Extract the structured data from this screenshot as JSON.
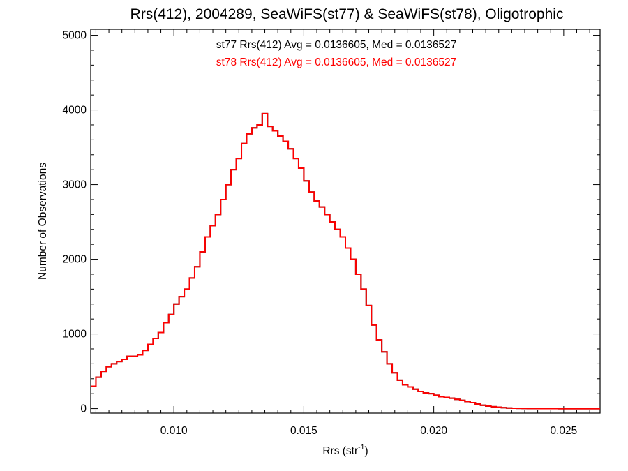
{
  "chart_data": {
    "type": "histogram-step",
    "title": "Rrs(412), 2004289, SeaWiFS(st77) & SeaWiFS(st78), Oligotrophic",
    "xlabel_main": "Rrs (str",
    "xlabel_sup": "-1",
    "xlabel_close": ")",
    "ylabel": "Number of Observations",
    "xlim": [
      0.0068,
      0.0264
    ],
    "ylim": [
      -60,
      5080
    ],
    "xticks": [
      0.01,
      0.015,
      0.02,
      0.025
    ],
    "xtick_labels": [
      "0.010",
      "0.015",
      "0.020",
      "0.025"
    ],
    "yticks": [
      0,
      1000,
      2000,
      3000,
      4000,
      5000
    ],
    "ytick_labels": [
      "0",
      "1000",
      "2000",
      "3000",
      "4000",
      "5000"
    ],
    "annotations": [
      {
        "text": "st77 Rrs(412) Avg = 0.0136605, Med = 0.0136527",
        "color": "#000000"
      },
      {
        "text": "st78 Rrs(412) Avg = 0.0136605, Med = 0.0136527",
        "color": "#ff0000"
      }
    ],
    "series": [
      {
        "name": "st77",
        "color": "#000000",
        "x": [
          0.0068,
          0.007,
          0.0072,
          0.0074,
          0.0076,
          0.0078,
          0.008,
          0.0082,
          0.0084,
          0.0086,
          0.0088,
          0.009,
          0.0092,
          0.0094,
          0.0096,
          0.0098,
          0.01,
          0.0102,
          0.0104,
          0.0106,
          0.0108,
          0.011,
          0.0112,
          0.0114,
          0.0116,
          0.0118,
          0.012,
          0.0122,
          0.0124,
          0.0126,
          0.0128,
          0.013,
          0.0132,
          0.0134,
          0.0136,
          0.0138,
          0.014,
          0.0142,
          0.0144,
          0.0146,
          0.0148,
          0.015,
          0.0152,
          0.0154,
          0.0156,
          0.0158,
          0.016,
          0.0162,
          0.0164,
          0.0166,
          0.0168,
          0.017,
          0.0172,
          0.0174,
          0.0176,
          0.0178,
          0.018,
          0.0182,
          0.0184,
          0.0186,
          0.0188,
          0.019,
          0.0192,
          0.0194,
          0.0196,
          0.0198,
          0.02,
          0.0202,
          0.0204,
          0.0206,
          0.0208,
          0.021,
          0.0212,
          0.0214,
          0.0216,
          0.0218,
          0.022,
          0.0222,
          0.0224,
          0.0226,
          0.0228,
          0.023,
          0.0232,
          0.0234,
          0.0236,
          0.0238,
          0.024,
          0.0242,
          0.0244,
          0.0246,
          0.0248,
          0.025,
          0.0252,
          0.0254,
          0.0256,
          0.0258,
          0.026,
          0.0262
        ],
        "y": [
          300,
          420,
          500,
          560,
          600,
          630,
          660,
          700,
          700,
          720,
          780,
          860,
          940,
          1020,
          1150,
          1260,
          1400,
          1500,
          1600,
          1750,
          1900,
          2100,
          2300,
          2450,
          2600,
          2800,
          3000,
          3200,
          3350,
          3550,
          3680,
          3760,
          3800,
          3950,
          3780,
          3720,
          3650,
          3580,
          3480,
          3350,
          3220,
          3050,
          2900,
          2780,
          2700,
          2600,
          2500,
          2400,
          2300,
          2150,
          2000,
          1800,
          1600,
          1380,
          1120,
          920,
          760,
          600,
          480,
          380,
          320,
          290,
          260,
          230,
          210,
          200,
          180,
          160,
          150,
          140,
          125,
          110,
          95,
          80,
          60,
          45,
          35,
          25,
          18,
          12,
          8,
          5,
          4,
          3,
          2,
          2,
          1,
          1,
          1,
          1,
          0,
          0,
          0,
          0,
          0,
          0,
          0,
          0
        ]
      },
      {
        "name": "st78",
        "color": "#ff0000",
        "x": [
          0.0068,
          0.007,
          0.0072,
          0.0074,
          0.0076,
          0.0078,
          0.008,
          0.0082,
          0.0084,
          0.0086,
          0.0088,
          0.009,
          0.0092,
          0.0094,
          0.0096,
          0.0098,
          0.01,
          0.0102,
          0.0104,
          0.0106,
          0.0108,
          0.011,
          0.0112,
          0.0114,
          0.0116,
          0.0118,
          0.012,
          0.0122,
          0.0124,
          0.0126,
          0.0128,
          0.013,
          0.0132,
          0.0134,
          0.0136,
          0.0138,
          0.014,
          0.0142,
          0.0144,
          0.0146,
          0.0148,
          0.015,
          0.0152,
          0.0154,
          0.0156,
          0.0158,
          0.016,
          0.0162,
          0.0164,
          0.0166,
          0.0168,
          0.017,
          0.0172,
          0.0174,
          0.0176,
          0.0178,
          0.018,
          0.0182,
          0.0184,
          0.0186,
          0.0188,
          0.019,
          0.0192,
          0.0194,
          0.0196,
          0.0198,
          0.02,
          0.0202,
          0.0204,
          0.0206,
          0.0208,
          0.021,
          0.0212,
          0.0214,
          0.0216,
          0.0218,
          0.022,
          0.0222,
          0.0224,
          0.0226,
          0.0228,
          0.023,
          0.0232,
          0.0234,
          0.0236,
          0.0238,
          0.024,
          0.0242,
          0.0244,
          0.0246,
          0.0248,
          0.025,
          0.0252,
          0.0254,
          0.0256,
          0.0258,
          0.026,
          0.0262
        ],
        "y": [
          300,
          420,
          500,
          560,
          600,
          630,
          660,
          700,
          700,
          720,
          780,
          860,
          940,
          1020,
          1150,
          1260,
          1400,
          1500,
          1600,
          1750,
          1900,
          2100,
          2300,
          2450,
          2600,
          2800,
          3000,
          3200,
          3350,
          3550,
          3680,
          3760,
          3800,
          3950,
          3780,
          3720,
          3650,
          3580,
          3480,
          3350,
          3220,
          3050,
          2900,
          2780,
          2700,
          2600,
          2500,
          2400,
          2300,
          2150,
          2000,
          1800,
          1600,
          1380,
          1120,
          920,
          760,
          600,
          480,
          380,
          320,
          290,
          260,
          230,
          210,
          200,
          180,
          160,
          150,
          140,
          125,
          110,
          95,
          80,
          60,
          45,
          35,
          25,
          18,
          12,
          8,
          5,
          4,
          3,
          2,
          2,
          1,
          1,
          1,
          1,
          0,
          0,
          0,
          0,
          0,
          0,
          0,
          0
        ]
      }
    ]
  }
}
